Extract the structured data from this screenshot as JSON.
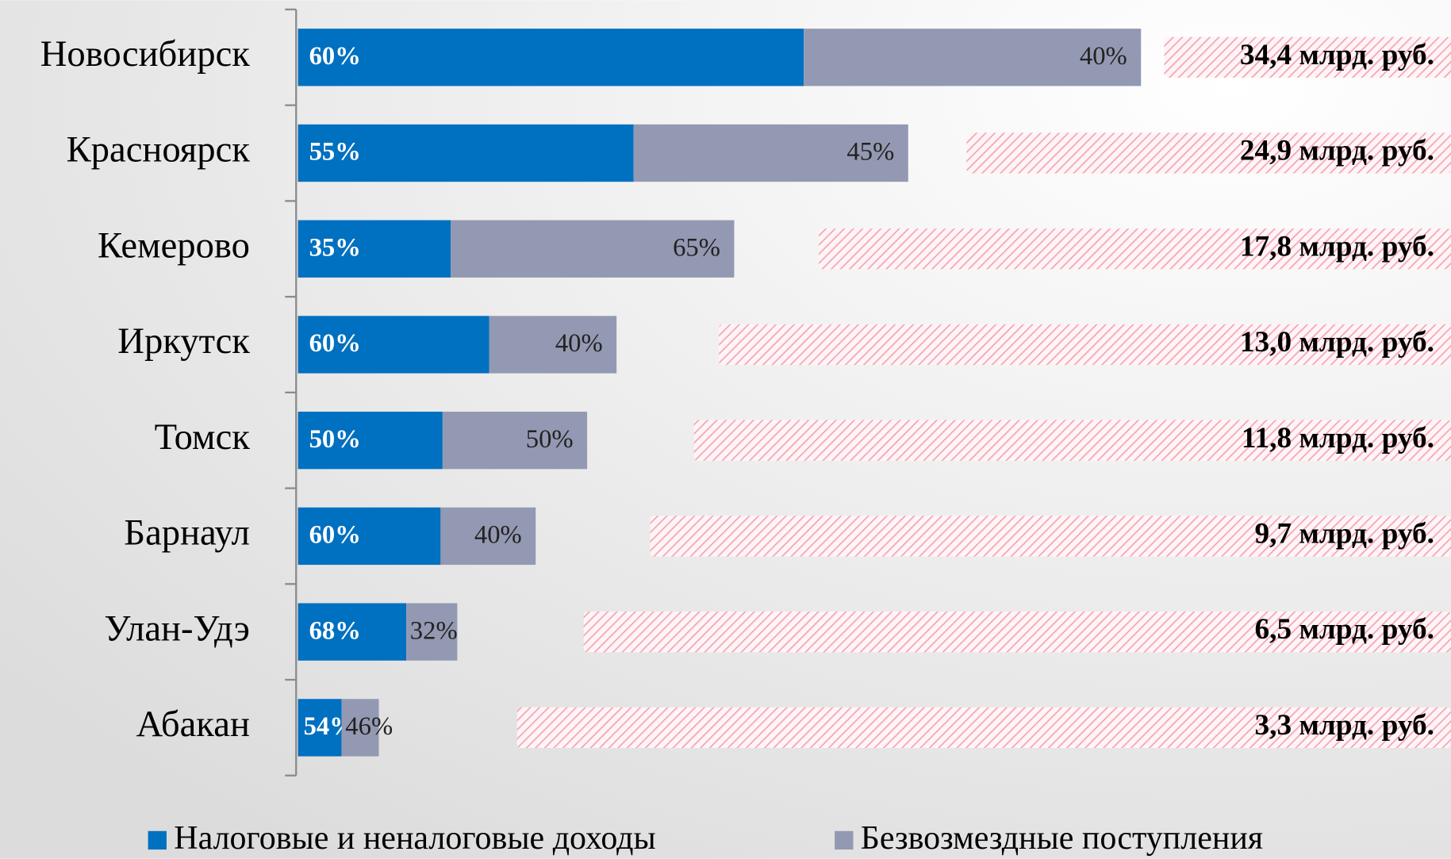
{
  "chart_data": {
    "type": "stacked-bar-horizontal",
    "categories": [
      "Новосибирск",
      "Красноярск",
      "Кемерово",
      "Иркутск",
      "Томск",
      "Барнаул",
      "Улан-Удэ",
      "Абакан"
    ],
    "series": [
      {
        "name": "Налоговые и неналоговые доходы",
        "color": "#0070c0",
        "values": [
          60,
          55,
          35,
          60,
          50,
          60,
          68,
          54
        ],
        "value_labels": [
          "60%",
          "55%",
          "35%",
          "60%",
          "50%",
          "60%",
          "68%",
          "54%"
        ]
      },
      {
        "name": "Безвозмездные поступления",
        "color": "#9399b2",
        "values": [
          40,
          45,
          65,
          40,
          50,
          40,
          32,
          46
        ],
        "value_labels": [
          "40%",
          "45%",
          "65%",
          "40%",
          "50%",
          "40%",
          "32%",
          "46%"
        ]
      }
    ],
    "totals": {
      "values": [
        34.4,
        24.9,
        17.8,
        13.0,
        11.8,
        9.7,
        6.5,
        3.3
      ],
      "value_labels": [
        "34,4 млрд. руб.",
        "24,9 млрд. руб.",
        "17,8 млрд. руб.",
        "13,0 млрд. руб.",
        "11,8 млрд. руб.",
        "9,7 млрд. руб.",
        "6,5 млрд. руб.",
        "3,3 млрд. руб."
      ],
      "color": "#f4a6b4"
    }
  }
}
